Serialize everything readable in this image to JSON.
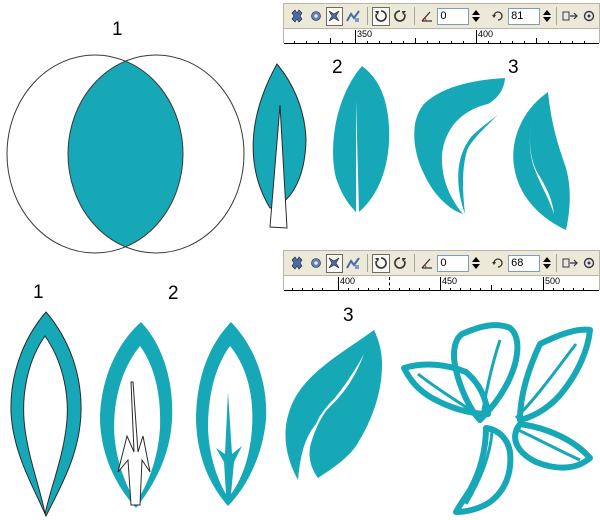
{
  "step_labels": {
    "s1_top": "1",
    "s2_top": "2",
    "s3_top": "3",
    "s1_bottom": "1",
    "s2_bottom": "2",
    "s3_bottom": "3"
  },
  "toolbar_top": {
    "angle_value": "0",
    "rotation_value": "81",
    "ruler_labels": [
      "350",
      "400"
    ]
  },
  "toolbar_bottom": {
    "angle_value": "0",
    "rotation_value": "68",
    "ruler_labels": [
      "400",
      "450",
      "500"
    ]
  },
  "icons": [
    "weld-icon",
    "trim-icon",
    "intersect-icon",
    "simplify-icon",
    "rotate-cw-icon",
    "rotate-ccw-icon",
    "angle-icon",
    "rotation-icon",
    "convert-icon"
  ],
  "colors": {
    "teal": "#17a8b8",
    "toolbar": "#ece9d8"
  }
}
